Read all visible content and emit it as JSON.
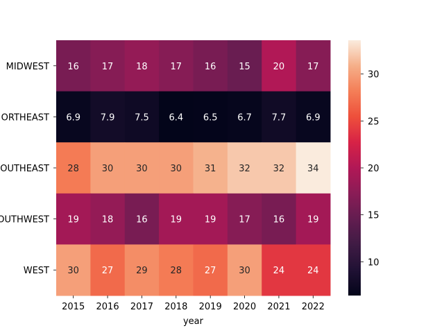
{
  "chart_data": {
    "type": "heatmap",
    "title": "",
    "xlabel": "year",
    "ylabel": "",
    "x_categories": [
      "2015",
      "2016",
      "2017",
      "2018",
      "2019",
      "2020",
      "2021",
      "2022"
    ],
    "y_categories": [
      "MIDWEST",
      "NORTHEAST",
      "SOUTHEAST",
      "SOUTHWEST",
      "WEST"
    ],
    "y_tick_labels_visible": [
      "MIDWEST",
      "ORTHEAST",
      "OUTHEAST",
      "OUTHWEST",
      "WEST"
    ],
    "values": [
      [
        16,
        17,
        18,
        17,
        16,
        15,
        20,
        17
      ],
      [
        6.9,
        7.9,
        7.5,
        6.4,
        6.5,
        6.7,
        7.7,
        6.9
      ],
      [
        28,
        30,
        30,
        30,
        31,
        32,
        32,
        34
      ],
      [
        19,
        18,
        16,
        19,
        19,
        17,
        16,
        19
      ],
      [
        30,
        27,
        29,
        28,
        27,
        30,
        24,
        24
      ]
    ],
    "vmin": 6.4,
    "vmax": 33.6,
    "colormap": "rocket",
    "colorbar": {
      "ticks": [
        10,
        15,
        20,
        25,
        30
      ],
      "tick_labels": [
        "10",
        "15",
        "20",
        "25",
        "30"
      ]
    },
    "annotations": true,
    "grid": false
  }
}
